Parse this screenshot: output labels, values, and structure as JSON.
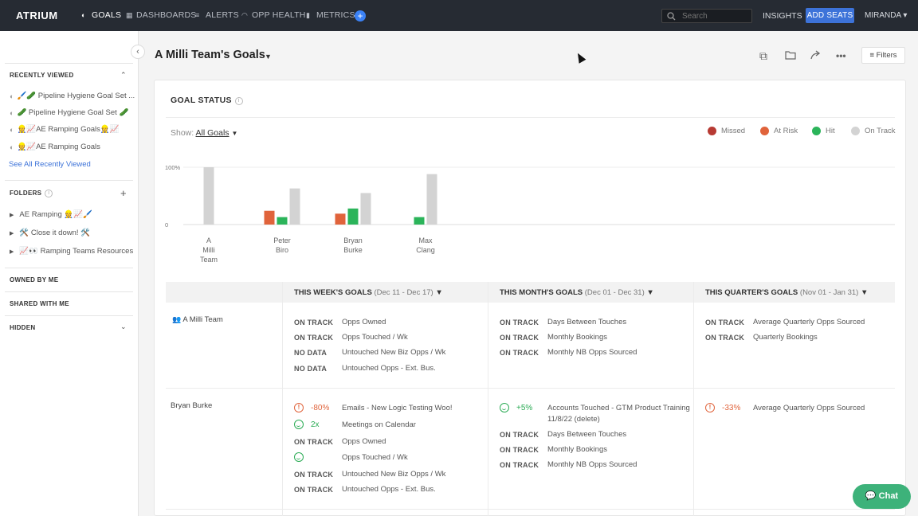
{
  "nav": {
    "logo": "ATRIUM",
    "items": [
      "GOALS",
      "DASHBOARDS",
      "ALERTS",
      "OPP HEALTH",
      "METRICS"
    ],
    "search_placeholder": "Search",
    "insights": "INSIGHTS",
    "add_seats": "ADD SEATS",
    "user": "MIRANDA"
  },
  "sidebar": {
    "recent_title": "RECENTLY VIEWED",
    "recent": [
      "🖌️🥒 Pipeline Hygiene Goal Set ...",
      "🥒 Pipeline Hygiene Goal Set 🥒",
      "👷📈AE Ramping Goals👷📈",
      "👷📈AE Ramping Goals"
    ],
    "see_all": "See All Recently Viewed",
    "folders_title": "FOLDERS",
    "folders": [
      "AE Ramping 👷📈🖌️",
      "🛠️ Close it down! 🛠️",
      "📈👀 Ramping Teams Resources"
    ],
    "owned": "OWNED BY ME",
    "shared": "SHARED WITH ME",
    "hidden": "HIDDEN"
  },
  "page": {
    "title": "A Milli Team's Goals",
    "filters": "Filters"
  },
  "goal_status": {
    "title": "GOAL STATUS",
    "show_label": "Show:",
    "show_value": "All Goals",
    "legend": [
      {
        "label": "Missed",
        "color": "#b73a33"
      },
      {
        "label": "At Risk",
        "color": "#e0633b"
      },
      {
        "label": "Hit",
        "color": "#2bb45a"
      },
      {
        "label": "On Track",
        "color": "#d3d3d3"
      }
    ]
  },
  "chart_data": {
    "type": "bar",
    "yticks": [
      "100%",
      "0"
    ],
    "ylim": [
      0,
      100
    ],
    "categories": [
      "A Milli Team",
      "Peter Biro",
      "Bryan Burke",
      "Max Clang"
    ],
    "series": [
      {
        "name": "At Risk",
        "color": "#e0633b",
        "values": [
          0,
          24,
          19,
          0
        ]
      },
      {
        "name": "Hit",
        "color": "#2bb45a",
        "values": [
          0,
          13,
          28,
          13
        ]
      },
      {
        "name": "On Track",
        "color": "#d3d3d3",
        "values": [
          100,
          63,
          55,
          88
        ]
      }
    ]
  },
  "table": {
    "columns": [
      {
        "title": "THIS WEEK'S GOALS",
        "range": "(Dec 11 - Dec 17)"
      },
      {
        "title": "THIS MONTH'S GOALS",
        "range": "(Dec 01 - Dec 31)"
      },
      {
        "title": "THIS QUARTER'S GOALS",
        "range": "(Nov 01 - Jan 31)"
      }
    ],
    "rows": [
      {
        "name": "A Milli Team",
        "week": [
          {
            "status": "ON TRACK",
            "goal": "Opps Owned"
          },
          {
            "status": "ON TRACK",
            "goal": "Opps Touched / Wk"
          },
          {
            "status": "NO DATA",
            "goal": "Untouched New Biz Opps / Wk"
          },
          {
            "status": "NO DATA",
            "goal": "Untouched Opps - Ext. Bus."
          }
        ],
        "month": [
          {
            "status": "ON TRACK",
            "goal": "Days Between Touches"
          },
          {
            "status": "ON TRACK",
            "goal": "Monthly Bookings"
          },
          {
            "status": "ON TRACK",
            "goal": "Monthly NB Opps Sourced"
          }
        ],
        "quarter": [
          {
            "status": "ON TRACK",
            "goal": "Average Quarterly Opps Sourced"
          },
          {
            "status": "ON TRACK",
            "goal": "Quarterly Bookings"
          }
        ]
      },
      {
        "name": "Bryan Burke",
        "week": [
          {
            "status": "-80%",
            "goal": "Emails - New Logic Testing Woo!"
          },
          {
            "status": "2x",
            "goal": "Meetings on Calendar"
          },
          {
            "status": "ON TRACK",
            "goal": "Opps Owned"
          },
          {
            "status": "",
            "goal": "Opps Touched / Wk"
          },
          {
            "status": "ON TRACK",
            "goal": "Untouched New Biz Opps / Wk"
          },
          {
            "status": "ON TRACK",
            "goal": "Untouched Opps - Ext. Bus."
          }
        ],
        "month": [
          {
            "status": "+5%",
            "goal": "Accounts Touched - GTM Product Training"
          },
          {
            "status": "",
            "goal": "11/8/22 (delete)"
          },
          {
            "status": "ON TRACK",
            "goal": "Days Between Touches"
          },
          {
            "status": "ON TRACK",
            "goal": "Monthly Bookings"
          },
          {
            "status": "ON TRACK",
            "goal": "Monthly NB Opps Sourced"
          }
        ],
        "quarter": [
          {
            "status": "-33%",
            "goal": "Average Quarterly Opps Sourced"
          }
        ]
      }
    ]
  },
  "chat": "Chat"
}
